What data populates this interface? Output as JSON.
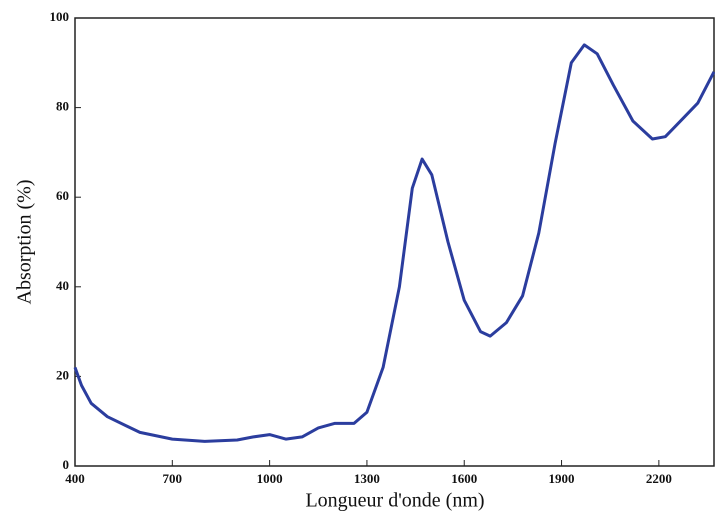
{
  "chart_data": {
    "type": "line",
    "xlabel": "Longueur d'onde (nm)",
    "ylabel": "Absorption (%)",
    "x": [
      400,
      420,
      450,
      500,
      600,
      700,
      800,
      900,
      950,
      1000,
      1050,
      1100,
      1150,
      1200,
      1260,
      1300,
      1350,
      1400,
      1440,
      1470,
      1500,
      1550,
      1600,
      1650,
      1680,
      1730,
      1780,
      1830,
      1880,
      1930,
      1970,
      2010,
      2060,
      2120,
      2180,
      2220,
      2280,
      2320,
      2370
    ],
    "values": [
      22,
      18,
      14,
      11,
      7.5,
      6,
      5.5,
      5.8,
      6.5,
      7,
      6,
      6.5,
      8.5,
      9.5,
      9.5,
      12,
      22,
      40,
      62,
      68.5,
      65,
      50,
      37,
      30,
      29,
      32,
      38,
      52,
      72,
      90,
      94,
      92,
      85,
      77,
      73,
      73.5,
      78,
      81,
      88
    ],
    "color": "#2b3d9e",
    "xlim": [
      400,
      2370
    ],
    "xticks": [
      400,
      700,
      1000,
      1300,
      1600,
      1900,
      2200
    ],
    "ylim": [
      0,
      100
    ],
    "yticks": [
      0,
      20,
      40,
      60,
      80,
      100
    ]
  }
}
